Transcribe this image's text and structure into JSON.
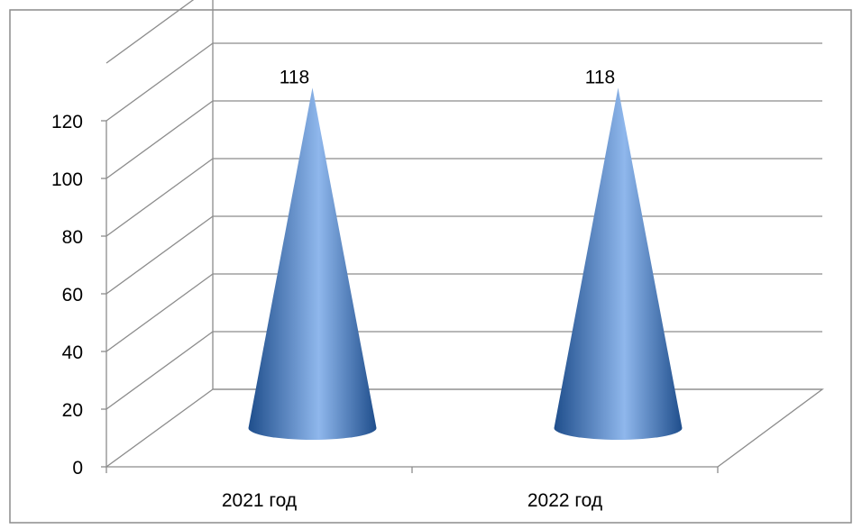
{
  "chart_data": {
    "type": "bar",
    "shape": "cone-3d",
    "categories": [
      "2021 год",
      "2022 год"
    ],
    "values": [
      118,
      118
    ],
    "data_labels": [
      "118",
      "118"
    ],
    "y_ticks": [
      "0",
      "20",
      "40",
      "60",
      "80",
      "100",
      "120"
    ],
    "ylim": [
      0,
      120
    ],
    "grid": true,
    "legend": "none",
    "colors": {
      "cone_dark": "#1f4e8c",
      "cone_mid": "#4a7fc8",
      "cone_light": "#8fb7ec",
      "grid": "#8c8c8c",
      "frame": "#8c8c8c"
    }
  }
}
